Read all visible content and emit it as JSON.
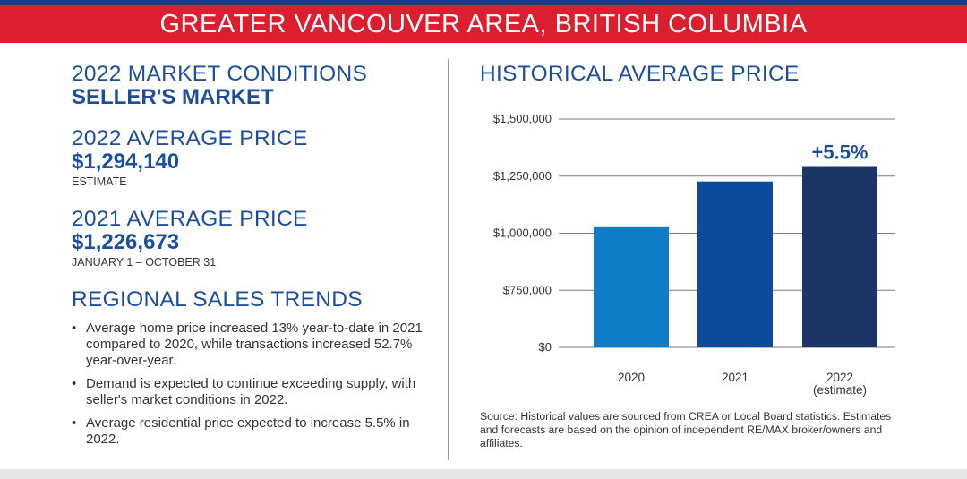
{
  "banner": {
    "title": "GREATER VANCOUVER AREA, BRITISH COLUMBIA"
  },
  "market": {
    "heading": "2022 MARKET CONDITIONS",
    "value": "SELLER'S MARKET"
  },
  "avg2022": {
    "heading": "2022 AVERAGE PRICE",
    "value": "$1,294,140",
    "note": "ESTIMATE"
  },
  "avg2021": {
    "heading": "2021 AVERAGE PRICE",
    "value": "$1,226,673",
    "note": "JANUARY 1 – OCTOBER 31"
  },
  "trends": {
    "heading": "REGIONAL SALES TRENDS",
    "bullet": "•",
    "items": [
      "Average home price increased 13% year-to-date in 2021 compared to 2020, while transactions increased 52.7% year-over-year.",
      "Demand is expected to continue exceeding supply, with seller's market conditions in 2022.",
      "Average residential price expected to increase 5.5% in 2022."
    ]
  },
  "chart_title": "HISTORICAL AVERAGE PRICE",
  "source": "Source: Historical values are sourced from CREA or Local Board statistics. Estimates and forecasts are based on the opinion of independent RE/MAX broker/owners and affiliates.",
  "colors": {
    "red": "#dc1f2e",
    "blue": "#1d4e9b"
  },
  "chart_data": {
    "type": "bar",
    "title": "HISTORICAL AVERAGE PRICE",
    "categories": [
      "2020",
      "2021",
      "2022\n(estimate)"
    ],
    "values": [
      1030000,
      1226673,
      1294140
    ],
    "bar_colors": [
      "#0e7cc7",
      "#0a4b9c",
      "#1b3566"
    ],
    "ylim": [
      0,
      1500000
    ],
    "yticks": [
      0,
      750000,
      1000000,
      1250000,
      1500000
    ],
    "ytick_labels": [
      "$0",
      "$750,000",
      "$1,000,000",
      "$1,250,000",
      "$1,500,000"
    ],
    "y_axis_break": true,
    "grid": true,
    "annotations": [
      {
        "category": "2022\n(estimate)",
        "text": "+5.5%"
      }
    ]
  }
}
